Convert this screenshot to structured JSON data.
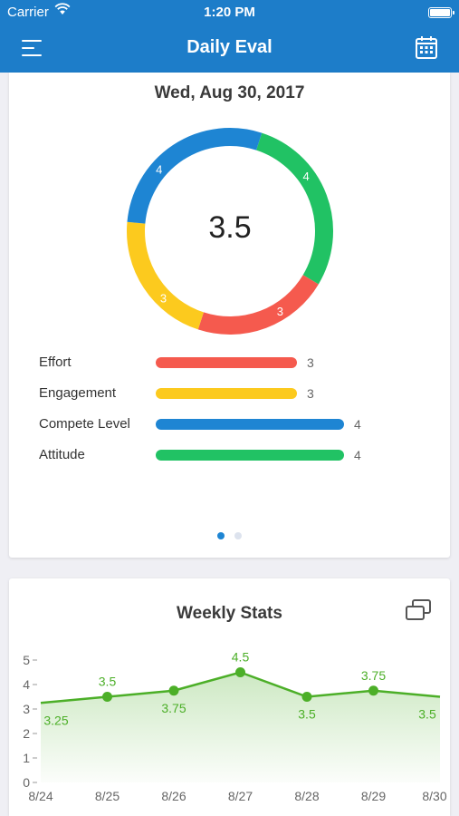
{
  "status_bar": {
    "carrier": "Carrier",
    "time": "1:20 PM"
  },
  "nav": {
    "title": "Daily Eval",
    "menu_icon": "hamburger-menu-icon",
    "calendar_icon": "calendar-icon"
  },
  "daily": {
    "date": "Wed, Aug 30, 2017",
    "score": "3.5",
    "ring": [
      {
        "name": "Attitude",
        "value": 4,
        "label": "4",
        "color": "#21c264"
      },
      {
        "name": "Effort",
        "value": 3,
        "label": "3",
        "color": "#f55a4e"
      },
      {
        "name": "Engagement",
        "value": 3,
        "label": "3",
        "color": "#fcca1e"
      },
      {
        "name": "Compete Level",
        "value": 4,
        "label": "4",
        "color": "#1e85d3"
      }
    ],
    "metrics": [
      {
        "label": "Effort",
        "value": "3",
        "fraction": 0.75,
        "color": "#f55a4e"
      },
      {
        "label": "Engagement",
        "value": "3",
        "fraction": 0.75,
        "color": "#fcca1e"
      },
      {
        "label": "Compete Level",
        "value": "4",
        "fraction": 1.0,
        "color": "#1e85d3"
      },
      {
        "label": "Attitude",
        "value": "4",
        "fraction": 1.0,
        "color": "#21c264"
      }
    ],
    "pager": {
      "pages": 2,
      "active": 0,
      "active_color": "#1e85d3",
      "inactive_color": "#dde3ee"
    }
  },
  "weekly": {
    "title": "Weekly Stats",
    "expand_icon": "expand-windows-icon"
  },
  "chart_data": {
    "type": "area",
    "x": [
      "8/24",
      "8/25",
      "8/26",
      "8/27",
      "8/28",
      "8/29",
      "8/30"
    ],
    "series": [
      {
        "values": [
          3.25,
          3.5,
          3.75,
          4.5,
          3.5,
          3.75,
          3.5
        ],
        "labels": [
          "3.25",
          "3.5",
          "3.75",
          "4.5",
          "3.5",
          "3.75",
          "3.5"
        ],
        "color": "#4caf28"
      }
    ],
    "yticks": [
      "0",
      "1",
      "2",
      "3",
      "4",
      "5"
    ],
    "ylim": [
      0,
      5
    ],
    "grid": false
  }
}
